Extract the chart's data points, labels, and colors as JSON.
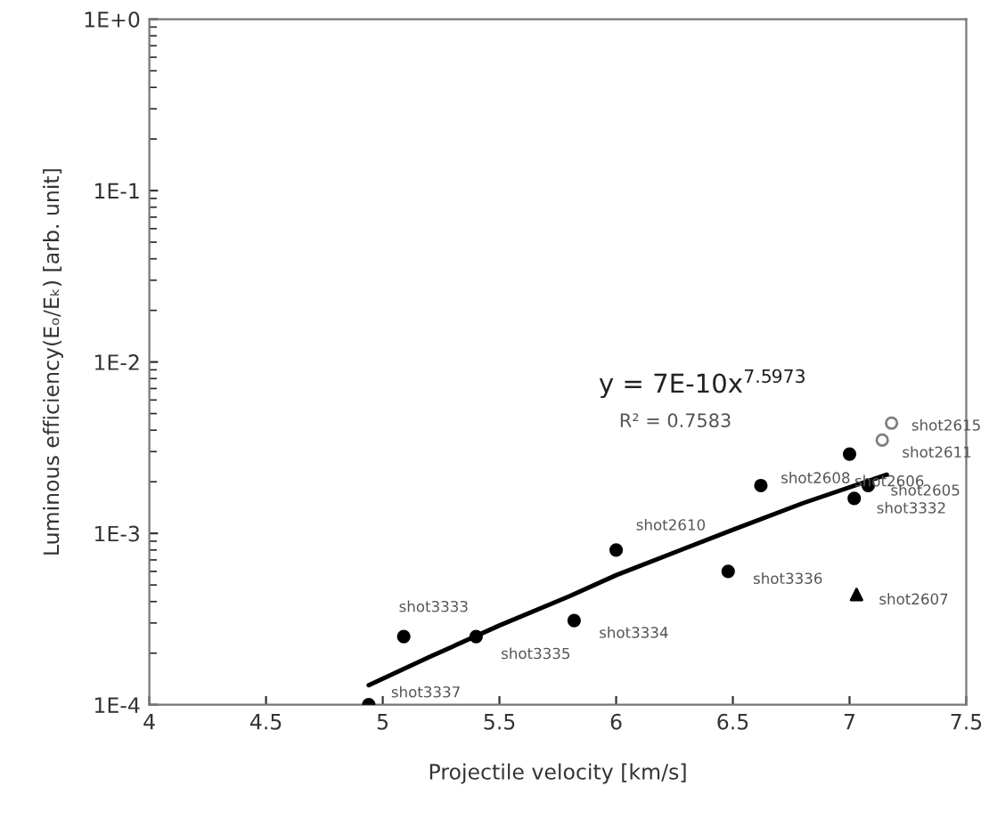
{
  "chart_data": {
    "type": "scatter",
    "xlabel": "Projectile velocity [km/s]",
    "ylabel": "Luminous efficiency(Eₒ/Eₖ) [arb. unit]",
    "series": [
      {
        "color": "#000000",
        "marker": "circle",
        "x": [
          4.94,
          5.09,
          5.4,
          5.82,
          6.0,
          6.48,
          6.62,
          7.0,
          7.08,
          7.02
        ],
        "values": [
          0.0001,
          0.00025,
          0.00025,
          0.00031,
          0.0008,
          0.0006,
          0.0019,
          0.0029,
          0.0019,
          0.0016
        ]
      },
      {
        "color": "#7f7f7f",
        "marker": "circle",
        "x": [
          7.18,
          7.14
        ],
        "values": [
          0.0044,
          0.0035
        ]
      },
      {
        "color": "#000000",
        "marker": "triangle",
        "x": [
          7.03
        ],
        "values": [
          0.00044
        ]
      },
      {
        "type": "line",
        "color": "#000000",
        "marker": "none",
        "line_style": "solid",
        "x": [
          4.94,
          5.2,
          5.5,
          5.8,
          6.0,
          6.5,
          6.8,
          7.16
        ],
        "values": [
          0.00013,
          0.00019,
          0.00029,
          0.00043,
          0.00057,
          0.00105,
          0.0015,
          0.0022
        ]
      }
    ],
    "annotations": [
      {
        "text": "shot3337",
        "x": 4.94,
        "y": 0.0001
      },
      {
        "text": "shot3333",
        "x": 5.09,
        "y": 0.00025
      },
      {
        "text": "shot3335",
        "x": 5.4,
        "y": 0.00025
      },
      {
        "text": "shot3334",
        "x": 5.82,
        "y": 0.00031
      },
      {
        "text": "shot2610",
        "x": 6.0,
        "y": 0.0008
      },
      {
        "text": "shot3336",
        "x": 6.48,
        "y": 0.0006
      },
      {
        "text": "shot2608",
        "x": 6.62,
        "y": 0.0019
      },
      {
        "text": "shot2606",
        "x": 7.0,
        "y": 0.0029
      },
      {
        "text": "shot2605",
        "x": 7.08,
        "y": 0.0019
      },
      {
        "text": "shot3332",
        "x": 7.02,
        "y": 0.0016
      },
      {
        "text": "shot2607",
        "x": 7.03,
        "y": 0.00044
      },
      {
        "text": "shot2615",
        "x": 7.18,
        "y": 0.0044
      },
      {
        "text": "shot2611",
        "x": 7.14,
        "y": 0.0035
      },
      "y = 7E-10x$^{7.5973}$",
      "R² = 0.7583"
    ],
    "log": "y",
    "xlim": [
      4,
      7.5
    ],
    "xticks": [
      4,
      4.5,
      5,
      5.5,
      6,
      6.5,
      7,
      7.5
    ],
    "ylim": [
      0.0001,
      1
    ],
    "yticks": [
      {
        "value": 0.0001,
        "label": "1E-4"
      },
      {
        "value": 0.001,
        "label": "1E-3"
      },
      {
        "value": 0.01,
        "label": "1E-2"
      },
      {
        "value": 0.1,
        "label": "1E-1"
      },
      {
        "value": 1,
        "label": "1E+0"
      }
    ],
    "grid": false,
    "legend": false
  }
}
